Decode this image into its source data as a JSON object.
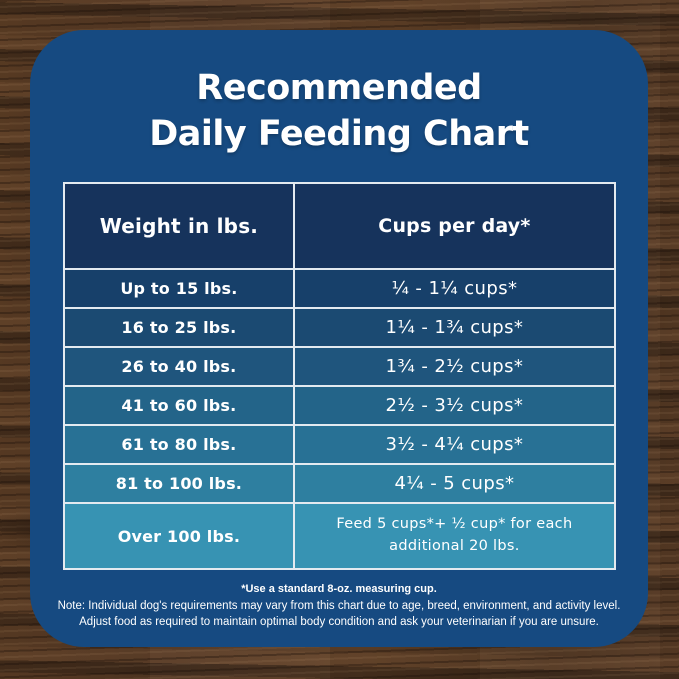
{
  "title": {
    "line1": "Recommended",
    "line2": "Daily Feeding Chart"
  },
  "table": {
    "headers": {
      "weight": "Weight in lbs.",
      "cups": "Cups per day*"
    },
    "rows": [
      {
        "weight": "Up to 15 lbs.",
        "cups": "¼ - 1¼ cups*"
      },
      {
        "weight": "16 to 25 lbs.",
        "cups": "1¼ - 1¾  cups*"
      },
      {
        "weight": "26 to 40 lbs.",
        "cups": "1¾ - 2½ cups*"
      },
      {
        "weight": "41 to 60 lbs.",
        "cups": "2½ - 3½ cups*"
      },
      {
        "weight": "61 to 80 lbs.",
        "cups": "3½ - 4¼ cups*"
      },
      {
        "weight": "81 to 100 lbs.",
        "cups": "4¼ - 5 cups*"
      },
      {
        "weight": "Over 100 lbs.",
        "cups": "Feed 5 cups*+ ½ cup* for each additional 20 lbs."
      }
    ],
    "row_colors": [
      "#17406a",
      "#1b4a72",
      "#1f557d",
      "#236489",
      "#287195",
      "#2e7fa0",
      "#3793b3"
    ]
  },
  "notes": {
    "asterisk": "*Use a standard 8-oz. measuring cup.",
    "line1": "Note: Individual dog's requirements may vary from this chart due to age, breed, environment, and activity level.",
    "line2": "Adjust food as required to maintain optimal body condition and ask your veterinarian if you are unsure."
  },
  "colors": {
    "card_background": "#164a81",
    "table_header_background": "#16335c",
    "table_border": "#e3eaf0",
    "text": "#ffffff",
    "wood_base": "#4a3322"
  },
  "chart_data": {
    "type": "table",
    "title": "Recommended Daily Feeding Chart",
    "columns": [
      "Weight in lbs.",
      "Cups per day*"
    ],
    "rows": [
      [
        "Up to 15 lbs.",
        "¼ - 1¼ cups*"
      ],
      [
        "16 to 25 lbs.",
        "1¼ - 1¾ cups*"
      ],
      [
        "26 to 40 lbs.",
        "1¾ - 2½ cups*"
      ],
      [
        "41 to 60 lbs.",
        "2½ - 3½ cups*"
      ],
      [
        "61 to 80 lbs.",
        "3½ - 4¼ cups*"
      ],
      [
        "81 to 100 lbs.",
        "4¼ - 5 cups*"
      ],
      [
        "Over 100 lbs.",
        "Feed 5 cups*+ ½ cup* for each additional 20 lbs."
      ]
    ],
    "footnotes": [
      "*Use a standard 8-oz. measuring cup.",
      "Note: Individual dog's requirements may vary from this chart due to age, breed, environment, and activity level.",
      "Adjust food as required to maintain optimal body condition and ask your veterinarian if you are unsure."
    ]
  }
}
